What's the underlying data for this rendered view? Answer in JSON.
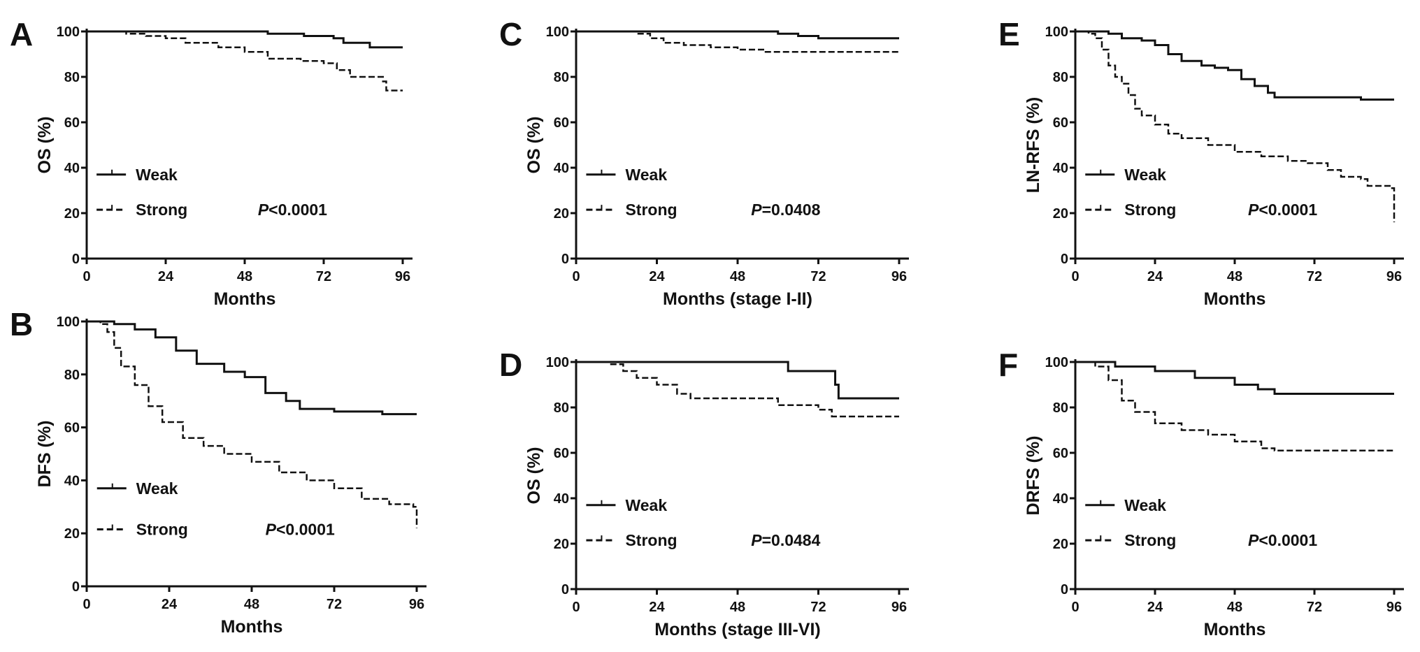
{
  "chart_data": [
    {
      "panel": "A",
      "type": "line",
      "ylabel": "OS (%)",
      "xlabel": "Months",
      "xlim": [
        0,
        96
      ],
      "ylim": [
        0,
        100
      ],
      "xticks": [
        0,
        24,
        48,
        72,
        96
      ],
      "yticks": [
        0,
        20,
        40,
        60,
        80,
        100
      ],
      "p_prefix": "P",
      "p_value": "<0.0001",
      "series": [
        {
          "name": "Weak",
          "style": "solid",
          "x": [
            0,
            48,
            55,
            66,
            75,
            78,
            86,
            96
          ],
          "y": [
            100,
            100,
            99,
            98,
            97,
            95,
            93,
            93
          ]
        },
        {
          "name": "Strong",
          "style": "dashed",
          "x": [
            0,
            12,
            18,
            24,
            30,
            40,
            48,
            55,
            65,
            72,
            76,
            80,
            89,
            90,
            91,
            96
          ],
          "y": [
            100,
            99,
            98,
            97,
            95,
            93,
            91,
            88,
            87,
            86,
            83,
            80,
            80,
            78,
            74,
            74
          ]
        }
      ]
    },
    {
      "panel": "B",
      "type": "line",
      "ylabel": "DFS (%)",
      "xlabel": "Months",
      "xlim": [
        0,
        96
      ],
      "ylim": [
        0,
        100
      ],
      "xticks": [
        0,
        24,
        48,
        72,
        96
      ],
      "yticks": [
        0,
        20,
        40,
        60,
        80,
        100
      ],
      "p_prefix": "P",
      "p_value": "<0.0001",
      "series": [
        {
          "name": "Weak",
          "style": "solid",
          "x": [
            0,
            8,
            14,
            20,
            26,
            32,
            40,
            46,
            52,
            58,
            62,
            72,
            86,
            96
          ],
          "y": [
            100,
            99,
            97,
            94,
            89,
            84,
            81,
            79,
            73,
            70,
            67,
            66,
            65,
            65
          ]
        },
        {
          "name": "Strong",
          "style": "dashed",
          "x": [
            0,
            4,
            6,
            8,
            10,
            14,
            18,
            22,
            28,
            34,
            40,
            48,
            56,
            64,
            72,
            80,
            88,
            95,
            96
          ],
          "y": [
            100,
            99,
            96,
            90,
            83,
            76,
            68,
            62,
            56,
            53,
            50,
            47,
            43,
            40,
            37,
            33,
            31,
            30,
            22
          ]
        }
      ]
    },
    {
      "panel": "C",
      "type": "line",
      "ylabel": "OS (%)",
      "xlabel": "Months (stage I-II)",
      "xlim": [
        0,
        96
      ],
      "ylim": [
        0,
        100
      ],
      "xticks": [
        0,
        24,
        48,
        72,
        96
      ],
      "yticks": [
        0,
        20,
        40,
        60,
        80,
        100
      ],
      "p_prefix": "P",
      "p_value": "=0.0408",
      "series": [
        {
          "name": "Weak",
          "style": "solid",
          "x": [
            0,
            60,
            66,
            72,
            96
          ],
          "y": [
            100,
            99,
            98,
            97,
            97
          ]
        },
        {
          "name": "Strong",
          "style": "dashed",
          "x": [
            0,
            18,
            22,
            26,
            32,
            40,
            48,
            56,
            96
          ],
          "y": [
            100,
            99,
            97,
            95,
            94,
            93,
            92,
            91,
            91
          ]
        }
      ]
    },
    {
      "panel": "D",
      "type": "line",
      "ylabel": "OS (%)",
      "xlabel": "Months (stage III-VI)",
      "xlim": [
        0,
        96
      ],
      "ylim": [
        0,
        100
      ],
      "xticks": [
        0,
        24,
        48,
        72,
        96
      ],
      "yticks": [
        0,
        20,
        40,
        60,
        80,
        100
      ],
      "p_prefix": "P",
      "p_value": "=0.0484",
      "series": [
        {
          "name": "Weak",
          "style": "solid",
          "x": [
            0,
            62,
            63,
            75,
            77,
            78,
            96
          ],
          "y": [
            100,
            100,
            96,
            96,
            90,
            84,
            84
          ]
        },
        {
          "name": "Strong",
          "style": "dashed",
          "x": [
            0,
            10,
            14,
            18,
            24,
            30,
            34,
            48,
            60,
            72,
            76,
            96
          ],
          "y": [
            100,
            99,
            96,
            93,
            90,
            86,
            84,
            84,
            81,
            79,
            76,
            76
          ]
        }
      ]
    },
    {
      "panel": "E",
      "type": "line",
      "ylabel": "LN-RFS (%)",
      "xlabel": "Months",
      "xlim": [
        0,
        96
      ],
      "ylim": [
        0,
        100
      ],
      "xticks": [
        0,
        24,
        48,
        72,
        96
      ],
      "yticks": [
        0,
        20,
        40,
        60,
        80,
        100
      ],
      "p_prefix": "P",
      "p_value": "<0.0001",
      "series": [
        {
          "name": "Weak",
          "style": "solid",
          "x": [
            0,
            10,
            14,
            20,
            24,
            28,
            32,
            38,
            42,
            46,
            50,
            54,
            58,
            60,
            84,
            86,
            96
          ],
          "y": [
            100,
            99,
            97,
            96,
            94,
            90,
            87,
            85,
            84,
            83,
            79,
            76,
            73,
            71,
            71,
            70,
            70
          ]
        },
        {
          "name": "Strong",
          "style": "dashed",
          "x": [
            0,
            4,
            6,
            8,
            10,
            12,
            14,
            16,
            18,
            20,
            24,
            28,
            32,
            40,
            48,
            56,
            64,
            70,
            76,
            80,
            86,
            88,
            95,
            96
          ],
          "y": [
            100,
            99,
            97,
            92,
            85,
            80,
            77,
            72,
            66,
            63,
            59,
            55,
            53,
            50,
            47,
            45,
            43,
            42,
            39,
            36,
            35,
            32,
            31,
            16
          ]
        }
      ]
    },
    {
      "panel": "F",
      "type": "line",
      "ylabel": "DRFS (%)",
      "xlabel": "Months",
      "xlim": [
        0,
        96
      ],
      "ylim": [
        0,
        100
      ],
      "xticks": [
        0,
        24,
        48,
        72,
        96
      ],
      "yticks": [
        0,
        20,
        40,
        60,
        80,
        100
      ],
      "p_prefix": "P",
      "p_value": "<0.0001",
      "series": [
        {
          "name": "Weak",
          "style": "solid",
          "x": [
            0,
            12,
            24,
            36,
            48,
            55,
            60,
            96
          ],
          "y": [
            100,
            98,
            96,
            93,
            90,
            88,
            86,
            86
          ]
        },
        {
          "name": "Strong",
          "style": "dashed",
          "x": [
            0,
            6,
            10,
            14,
            18,
            24,
            32,
            40,
            48,
            56,
            60,
            96
          ],
          "y": [
            100,
            98,
            92,
            83,
            78,
            73,
            70,
            68,
            65,
            62,
            61,
            61
          ]
        }
      ]
    }
  ]
}
